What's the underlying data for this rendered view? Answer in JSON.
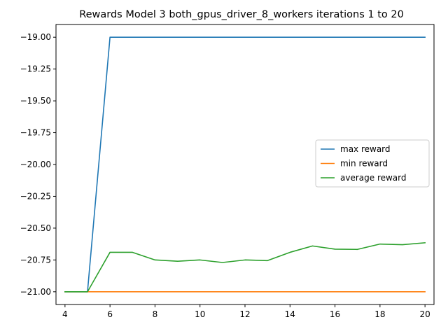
{
  "chart_data": {
    "type": "line",
    "title": "Rewards Model 3 both_gpus_driver_8_workers iterations 1 to 20",
    "xlabel": "",
    "ylabel": "",
    "xlim": [
      3.6,
      20.4
    ],
    "ylim": [
      -21.1,
      -18.9
    ],
    "xticks": [
      4,
      6,
      8,
      10,
      12,
      14,
      16,
      18,
      20
    ],
    "xtick_labels": [
      "4",
      "6",
      "8",
      "10",
      "12",
      "14",
      "16",
      "18",
      "20"
    ],
    "yticks": [
      -19.0,
      -19.25,
      -19.5,
      -19.75,
      -20.0,
      -20.25,
      -20.5,
      -20.75,
      -21.0
    ],
    "ytick_labels": [
      "−19.00",
      "−19.25",
      "−19.50",
      "−19.75",
      "−20.00",
      "−20.25",
      "−20.50",
      "−20.75",
      "−21.00"
    ],
    "grid": false,
    "legend_position": "center-right",
    "x": [
      4,
      5,
      6,
      7,
      8,
      9,
      10,
      11,
      12,
      13,
      14,
      15,
      16,
      17,
      18,
      19,
      20
    ],
    "series": [
      {
        "name": "max reward",
        "color": "#1f77b4",
        "values": [
          -21.0,
          -21.0,
          -19.0,
          -19.0,
          -19.0,
          -19.0,
          -19.0,
          -19.0,
          -19.0,
          -19.0,
          -19.0,
          -19.0,
          -19.0,
          -19.0,
          -19.0,
          -19.0,
          -19.0
        ]
      },
      {
        "name": "min reward",
        "color": "#ff7f0e",
        "values": [
          -21.0,
          -21.0,
          -21.0,
          -21.0,
          -21.0,
          -21.0,
          -21.0,
          -21.0,
          -21.0,
          -21.0,
          -21.0,
          -21.0,
          -21.0,
          -21.0,
          -21.0,
          -21.0,
          -21.0
        ]
      },
      {
        "name": "average reward",
        "color": "#2ca02c",
        "values": [
          -21.0,
          -21.0,
          -20.69,
          -20.69,
          -20.75,
          -20.76,
          -20.75,
          -20.77,
          -20.75,
          -20.755,
          -20.69,
          -20.64,
          -20.665,
          -20.667,
          -20.625,
          -20.63,
          -20.615
        ]
      }
    ]
  }
}
